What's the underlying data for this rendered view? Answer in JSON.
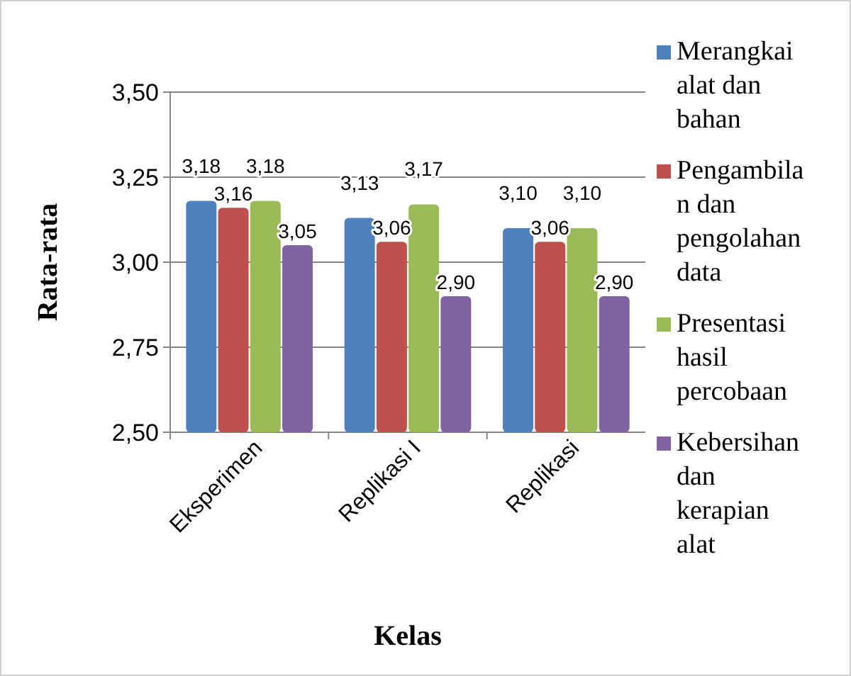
{
  "chart_data": {
    "type": "bar",
    "xlabel": "Kelas",
    "ylabel": "Rata-rata",
    "categories": [
      "Eksperimen",
      "Replikasi I",
      "Replikasi"
    ],
    "series": [
      {
        "name": "Merangkai alat dan bahan",
        "color": "#4f81bd",
        "values": [
          3.18,
          3.13,
          3.1
        ],
        "value_labels": [
          "3,18",
          "3,13",
          "3,10"
        ]
      },
      {
        "name": "Pengambilan dan pengolahan data",
        "color": "#c0504d",
        "values": [
          3.16,
          3.06,
          3.06
        ],
        "value_labels": [
          "3,16",
          "3,06",
          "3,06"
        ]
      },
      {
        "name": "Presentasi hasil percobaan",
        "color": "#9bbb59",
        "values": [
          3.18,
          3.17,
          3.1
        ],
        "value_labels": [
          "3,18",
          "3,17",
          "3,10"
        ]
      },
      {
        "name": "Kebersihan dan kerapian alat",
        "color": "#8064a2",
        "values": [
          3.05,
          2.9,
          2.9
        ],
        "value_labels": [
          "3,05",
          "2,90",
          "2,90"
        ]
      }
    ],
    "ylim": [
      2.5,
      3.5
    ],
    "yticks": [
      {
        "value": 2.5,
        "label": "2,50"
      },
      {
        "value": 2.75,
        "label": "2,75"
      },
      {
        "value": 3.0,
        "label": "3,00"
      },
      {
        "value": 3.25,
        "label": "3,25"
      },
      {
        "value": 3.5,
        "label": "3,50"
      }
    ],
    "grid": "y",
    "legend": "right"
  }
}
